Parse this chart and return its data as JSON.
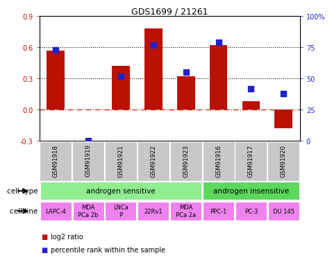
{
  "title": "GDS1699 / 21261",
  "samples": [
    "GSM91918",
    "GSM91919",
    "GSM91921",
    "GSM91922",
    "GSM91923",
    "GSM91916",
    "GSM91917",
    "GSM91920"
  ],
  "log2_ratio": [
    0.57,
    0.0,
    0.42,
    0.78,
    0.32,
    0.62,
    0.08,
    -0.18
  ],
  "pct_rank": [
    73,
    0,
    52,
    77,
    55,
    79,
    42,
    38
  ],
  "ylim_left": [
    -0.3,
    0.9
  ],
  "ylim_right": [
    0,
    100
  ],
  "yticks_left": [
    -0.3,
    0.0,
    0.3,
    0.6,
    0.9
  ],
  "yticks_right": [
    0,
    25,
    50,
    75,
    100
  ],
  "hlines": [
    0.3,
    0.6
  ],
  "cell_type_groups": [
    {
      "label": "androgen sensitive",
      "start": 0,
      "end": 5,
      "color": "#90EE90"
    },
    {
      "label": "androgen insensitive",
      "start": 5,
      "end": 8,
      "color": "#5DD85D"
    }
  ],
  "cell_lines": [
    {
      "label": "LAPC-4",
      "start": 0,
      "end": 1
    },
    {
      "label": "MDA\nPCa 2b",
      "start": 1,
      "end": 2
    },
    {
      "label": "LNCa\nP",
      "start": 2,
      "end": 3
    },
    {
      "label": "22Rv1",
      "start": 3,
      "end": 4
    },
    {
      "label": "MDA\nPCa 2a",
      "start": 4,
      "end": 5
    },
    {
      "label": "PPC-1",
      "start": 5,
      "end": 6
    },
    {
      "label": "PC-3",
      "start": 6,
      "end": 7
    },
    {
      "label": "DU 145",
      "start": 7,
      "end": 8
    }
  ],
  "cell_line_color": "#EE82EE",
  "bar_color": "#BB1100",
  "dot_color": "#2222CC",
  "zero_line_color": "#CC2200",
  "bar_width": 0.55,
  "dot_size": 40,
  "sample_box_color": "#C8C8C8",
  "sample_box_edge": "#AAAAAA"
}
